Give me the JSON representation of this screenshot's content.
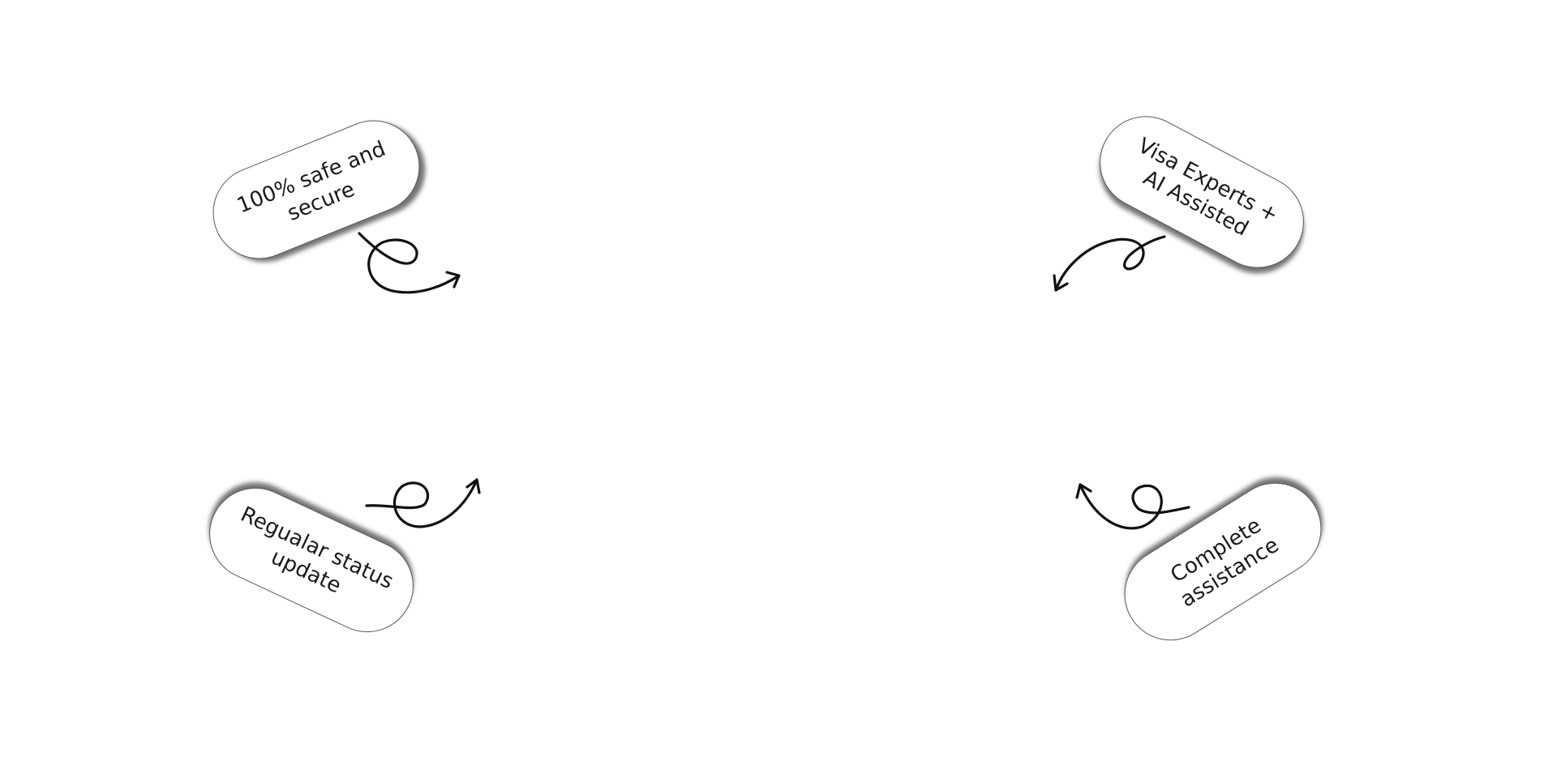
{
  "badges": [
    {
      "label": "100% safe and secure"
    },
    {
      "label": "Visa Experts + AI Assisted"
    },
    {
      "label": "Regualar status update"
    },
    {
      "label": "Complete assistance"
    }
  ],
  "icons": [
    "curly-arrow-icon",
    "curly-arrow-icon",
    "curly-arrow-icon",
    "curly-arrow-icon"
  ],
  "colors": {
    "background": "#ffffff",
    "text": "#1a1a1a",
    "stroke": "#111111"
  }
}
